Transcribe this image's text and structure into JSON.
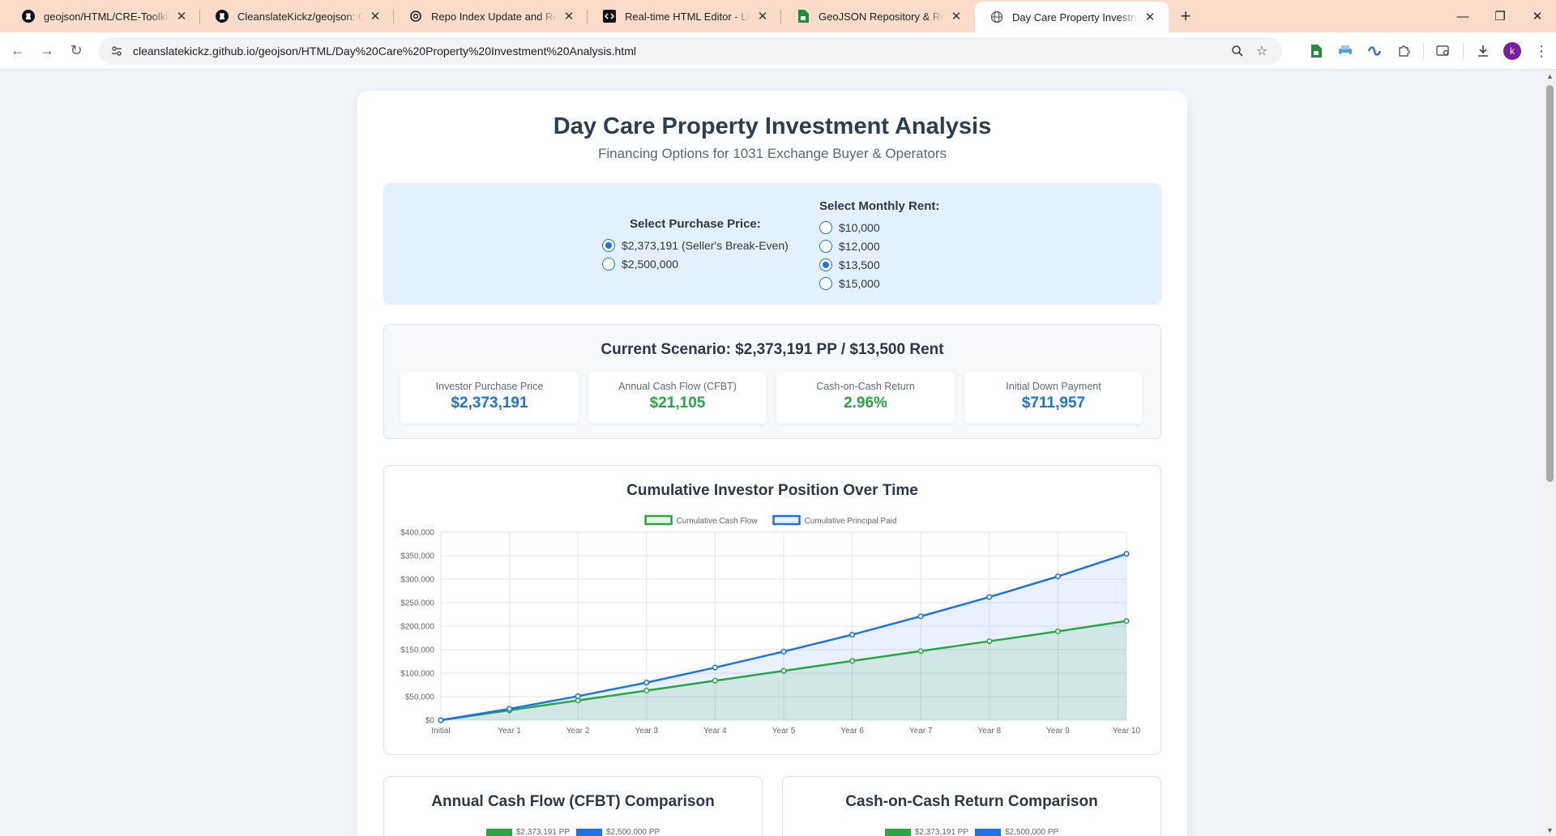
{
  "browser": {
    "tabs": [
      {
        "title": "geojson/HTML/CRE-Toolkit.html",
        "icon": "github-icon",
        "active": false
      },
      {
        "title": "CleanslateKickz/geojson: GeoJSON",
        "icon": "github-icon",
        "active": false
      },
      {
        "title": "Repo Index Update and Redesign",
        "icon": "openai-icon",
        "active": false
      },
      {
        "title": "Real-time HTML Editor - Live HTML",
        "icon": "code-editor-icon",
        "active": false
      },
      {
        "title": "GeoJSON Repository & Real Estate",
        "icon": "sheets-icon",
        "active": false
      },
      {
        "title": "Day Care Property Investment Analysis",
        "icon": "globe-icon",
        "active": true
      }
    ],
    "url": "cleanslatekickz.github.io/geojson/HTML/Day%20Care%20Property%20Investment%20Analysis.html",
    "profile_initial": "k"
  },
  "page": {
    "title": "Day Care Property Investment Analysis",
    "subtitle": "Financing Options for 1031 Exchange Buyer & Operators",
    "purchase_price": {
      "label": "Select Purchase Price:",
      "options": [
        "$2,373,191 (Seller's Break-Even)",
        "$2,500,000"
      ],
      "selected": 0
    },
    "monthly_rent": {
      "label": "Select Monthly Rent:",
      "options": [
        "$10,000",
        "$12,000",
        "$13,500",
        "$15,000"
      ],
      "selected": 2
    },
    "scenario": {
      "title": "Current Scenario: $2,373,191 PP / $13,500 Rent",
      "metrics": [
        {
          "label": "Investor Purchase Price",
          "value": "$2,373,191",
          "color": "#1a73e8"
        },
        {
          "label": "Annual Cash Flow (CFBT)",
          "value": "$21,105",
          "color": "#28a745"
        },
        {
          "label": "Cash-on-Cash Return",
          "value": "2.96%",
          "color": "#28a745"
        },
        {
          "label": "Initial Down Payment",
          "value": "$711,957",
          "color": "#1a73e8"
        }
      ]
    },
    "cfbt_chart": {
      "title": "Annual Cash Flow (CFBT) Comparison",
      "legend": [
        "$2,373,191 PP",
        "$2,500,000 PP"
      ],
      "colors": [
        "#28a745",
        "#1a73e8"
      ]
    },
    "coc_chart": {
      "title": "Cash-on-Cash Return Comparison",
      "legend": [
        "$2,373,191 PP",
        "$2,500,000 PP"
      ],
      "colors": [
        "#28a745",
        "#1a73e8"
      ]
    }
  },
  "chart_data": {
    "type": "line",
    "title": "Cumulative Investor Position Over Time",
    "categories": [
      "Initial",
      "Year 1",
      "Year 2",
      "Year 3",
      "Year 4",
      "Year 5",
      "Year 6",
      "Year 7",
      "Year 8",
      "Year 9",
      "Year 10"
    ],
    "series": [
      {
        "name": "Cumulative Cash Flow",
        "color": "#28a745",
        "fill": "rgba(40,167,69,0.12)",
        "values": [
          0,
          21000,
          42000,
          63000,
          84000,
          105000,
          126000,
          147000,
          168000,
          189000,
          211000
        ]
      },
      {
        "name": "Cumulative Principal Paid",
        "color": "#1a73e8",
        "fill": "rgba(26,115,232,0.10)",
        "values": [
          0,
          24000,
          51000,
          80000,
          112000,
          146000,
          182000,
          221000,
          262000,
          306000,
          354000
        ]
      }
    ],
    "ylim": [
      0,
      400000
    ],
    "yticks": [
      "$0",
      "$50,000",
      "$100,000",
      "$150,000",
      "$200,000",
      "$250,000",
      "$300,000",
      "$350,000",
      "$400,000"
    ],
    "legend_position": "top-center",
    "grid": true
  }
}
